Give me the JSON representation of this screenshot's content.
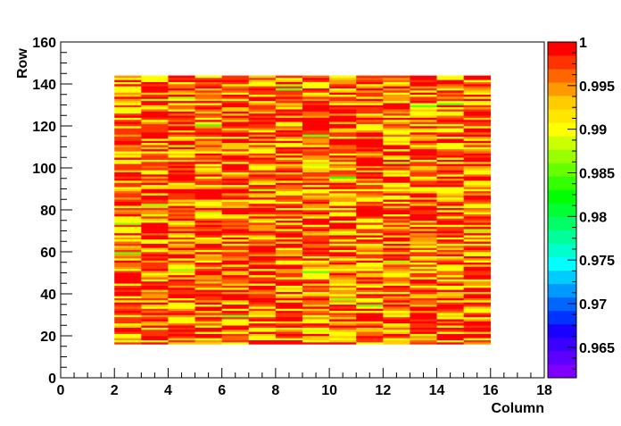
{
  "chart_data": {
    "type": "heatmap",
    "title": "",
    "xlabel": "Column",
    "ylabel": "Row",
    "xlim": [
      0,
      18
    ],
    "ylim": [
      0,
      160
    ],
    "x_ticks": [
      "0",
      "2",
      "4",
      "6",
      "8",
      "10",
      "12",
      "14",
      "16",
      "18"
    ],
    "y_ticks": [
      "0",
      "20",
      "40",
      "60",
      "80",
      "100",
      "120",
      "140",
      "160"
    ],
    "z_range": [
      0.9615,
      1.0
    ],
    "z_ticks": [
      "0.965",
      "0.97",
      "0.975",
      "0.98",
      "0.985",
      "0.99",
      "0.995",
      "1"
    ],
    "columns": [
      2,
      3,
      4,
      5,
      6,
      7,
      8,
      9,
      10,
      11,
      12,
      13,
      14,
      15
    ],
    "row_range": [
      16,
      144
    ],
    "grid": false,
    "colorbar": "right",
    "palette": [
      "#7f00ff",
      "#5d00ff",
      "#3b00ff",
      "#1a00ff",
      "#0033ff",
      "#0066ff",
      "#0099ff",
      "#00ccff",
      "#00ffff",
      "#00ffcc",
      "#00ff99",
      "#00ff66",
      "#00ff33",
      "#00ff00",
      "#33ff00",
      "#66ff00",
      "#99ff00",
      "#ccff00",
      "#ffff00",
      "#ffe600",
      "#ffcc00",
      "#ff9900",
      "#ff6600",
      "#ff3300",
      "#ff0000"
    ]
  }
}
